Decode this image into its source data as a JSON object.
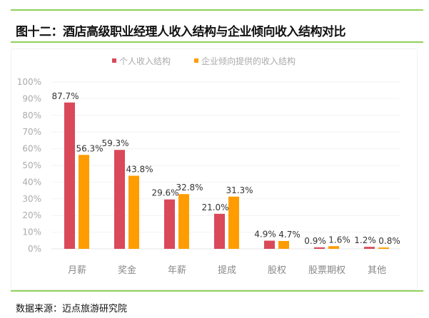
{
  "title": "图十二：酒店高级职业经理人收入结构与企业倾向收入结构对比",
  "source": "数据来源：迈点旅游研究院",
  "chart_data": {
    "type": "bar",
    "title": "图十二：酒店高级职业经理人收入结构与企业倾向收入结构对比",
    "categories": [
      "月薪",
      "奖金",
      "年薪",
      "提成",
      "股权",
      "股票期权",
      "其他"
    ],
    "series": [
      {
        "name": "个人收入结构",
        "color": "#d9495a",
        "values": [
          87.7,
          59.3,
          29.6,
          21.0,
          4.9,
          0.9,
          1.2
        ],
        "labels": [
          "87.7%",
          "59.3%",
          "29.6%",
          "21.0%",
          "4.9%",
          "0.9%",
          "1.2%"
        ]
      },
      {
        "name": "企业倾向提供的收入结构",
        "color": "#ff9c00",
        "values": [
          56.3,
          43.8,
          32.8,
          31.3,
          4.7,
          1.6,
          0.8
        ],
        "labels": [
          "56.3%",
          "43.8%",
          "32.8%",
          "31.3%",
          "4.7%",
          "1.6%",
          "0.8%"
        ]
      }
    ],
    "yticks": [
      "0%",
      "10%",
      "20%",
      "30%",
      "40%",
      "50%",
      "60%",
      "70%",
      "80%",
      "90%",
      "100%"
    ],
    "ylim": [
      0,
      100
    ],
    "grid": true,
    "legend": "top-center",
    "xlabel": "",
    "ylabel": ""
  }
}
